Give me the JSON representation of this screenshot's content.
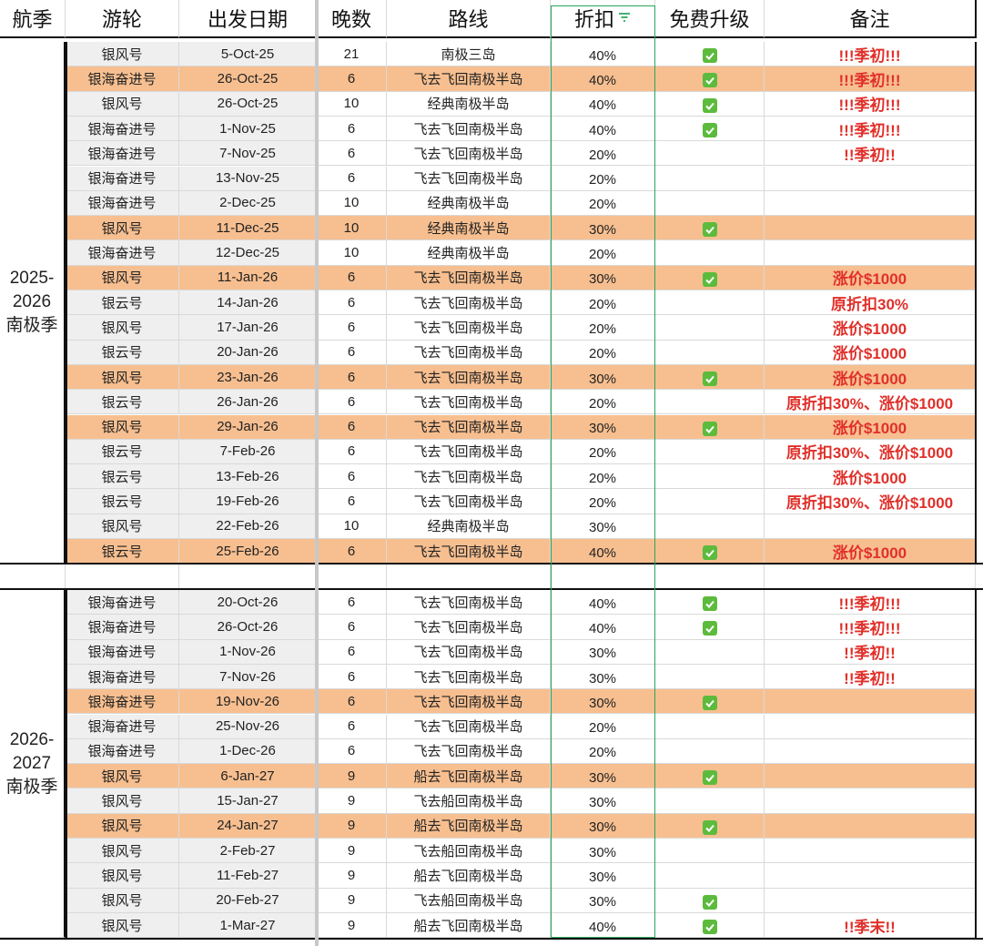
{
  "header": [
    "航季",
    "游轮",
    "出发日期",
    "晚数",
    "路线",
    "折扣",
    "免费升级",
    "备注"
  ],
  "sections": [
    {
      "season": [
        "2025-",
        "2026",
        "南极季"
      ],
      "rows": [
        {
          "ship": "银风号",
          "date": "5-Oct-25",
          "nights": 21,
          "route": "南极三岛",
          "discount": "40%",
          "upgrade": true,
          "note": "!!!季初!!!",
          "highlight": false
        },
        {
          "ship": "银海奋进号",
          "date": "26-Oct-25",
          "nights": 6,
          "route": "飞去飞回南极半岛",
          "discount": "40%",
          "upgrade": true,
          "note": "!!!季初!!!",
          "highlight": true
        },
        {
          "ship": "银风号",
          "date": "26-Oct-25",
          "nights": 10,
          "route": "经典南极半岛",
          "discount": "40%",
          "upgrade": true,
          "note": "!!!季初!!!",
          "highlight": false
        },
        {
          "ship": "银海奋进号",
          "date": "1-Nov-25",
          "nights": 6,
          "route": "飞去飞回南极半岛",
          "discount": "40%",
          "upgrade": true,
          "note": "!!!季初!!!",
          "highlight": false
        },
        {
          "ship": "银海奋进号",
          "date": "7-Nov-25",
          "nights": 6,
          "route": "飞去飞回南极半岛",
          "discount": "20%",
          "upgrade": false,
          "note": "!!季初!!",
          "highlight": false
        },
        {
          "ship": "银海奋进号",
          "date": "13-Nov-25",
          "nights": 6,
          "route": "飞去飞回南极半岛",
          "discount": "20%",
          "upgrade": false,
          "highlight": false
        },
        {
          "ship": "银海奋进号",
          "date": "2-Dec-25",
          "nights": 10,
          "route": "经典南极半岛",
          "discount": "20%",
          "upgrade": false,
          "highlight": false
        },
        {
          "ship": "银风号",
          "date": "11-Dec-25",
          "nights": 10,
          "route": "经典南极半岛",
          "discount": "30%",
          "upgrade": true,
          "highlight": true
        },
        {
          "ship": "银海奋进号",
          "date": "12-Dec-25",
          "nights": 10,
          "route": "经典南极半岛",
          "discount": "20%",
          "upgrade": false,
          "highlight": false
        },
        {
          "ship": "银风号",
          "date": "11-Jan-26",
          "nights": 6,
          "route": "飞去飞回南极半岛",
          "discount": "30%",
          "upgrade": true,
          "note": "涨价$1000",
          "highlight": true
        },
        {
          "ship": "银云号",
          "date": "14-Jan-26",
          "nights": 6,
          "route": "飞去飞回南极半岛",
          "discount": "20%",
          "upgrade": false,
          "note": "原折扣30%",
          "highlight": false
        },
        {
          "ship": "银风号",
          "date": "17-Jan-26",
          "nights": 6,
          "route": "飞去飞回南极半岛",
          "discount": "20%",
          "upgrade": false,
          "note": "涨价$1000",
          "highlight": false
        },
        {
          "ship": "银云号",
          "date": "20-Jan-26",
          "nights": 6,
          "route": "飞去飞回南极半岛",
          "discount": "20%",
          "upgrade": false,
          "note": "涨价$1000",
          "highlight": false
        },
        {
          "ship": "银风号",
          "date": "23-Jan-26",
          "nights": 6,
          "route": "飞去飞回南极半岛",
          "discount": "30%",
          "upgrade": true,
          "note": "涨价$1000",
          "highlight": true
        },
        {
          "ship": "银云号",
          "date": "26-Jan-26",
          "nights": 6,
          "route": "飞去飞回南极半岛",
          "discount": "20%",
          "upgrade": false,
          "note": "原折扣30%、涨价$1000",
          "highlight": false
        },
        {
          "ship": "银风号",
          "date": "29-Jan-26",
          "nights": 6,
          "route": "飞去飞回南极半岛",
          "discount": "30%",
          "upgrade": true,
          "note": "涨价$1000",
          "highlight": true
        },
        {
          "ship": "银云号",
          "date": "7-Feb-26",
          "nights": 6,
          "route": "飞去飞回南极半岛",
          "discount": "20%",
          "upgrade": false,
          "note": "原折扣30%、涨价$1000",
          "highlight": false
        },
        {
          "ship": "银云号",
          "date": "13-Feb-26",
          "nights": 6,
          "route": "飞去飞回南极半岛",
          "discount": "20%",
          "upgrade": false,
          "note": "涨价$1000",
          "highlight": false
        },
        {
          "ship": "银云号",
          "date": "19-Feb-26",
          "nights": 6,
          "route": "飞去飞回南极半岛",
          "discount": "20%",
          "upgrade": false,
          "note": "原折扣30%、涨价$1000",
          "highlight": false
        },
        {
          "ship": "银风号",
          "date": "22-Feb-26",
          "nights": 10,
          "route": "经典南极半岛",
          "discount": "30%",
          "upgrade": false,
          "highlight": false
        },
        {
          "ship": "银云号",
          "date": "25-Feb-26",
          "nights": 6,
          "route": "飞去飞回南极半岛",
          "discount": "40%",
          "upgrade": true,
          "note": "涨价$1000",
          "highlight": true
        }
      ]
    },
    {
      "season": [
        "2026-",
        "2027",
        "南极季"
      ],
      "rows": [
        {
          "ship": "银海奋进号",
          "date": "20-Oct-26",
          "nights": 6,
          "route": "飞去飞回南极半岛",
          "discount": "40%",
          "upgrade": true,
          "note": "!!!季初!!!",
          "highlight": false
        },
        {
          "ship": "银海奋进号",
          "date": "26-Oct-26",
          "nights": 6,
          "route": "飞去飞回南极半岛",
          "discount": "40%",
          "upgrade": true,
          "note": "!!!季初!!!",
          "highlight": false
        },
        {
          "ship": "银海奋进号",
          "date": "1-Nov-26",
          "nights": 6,
          "route": "飞去飞回南极半岛",
          "discount": "30%",
          "upgrade": false,
          "note": "!!季初!!",
          "highlight": false
        },
        {
          "ship": "银海奋进号",
          "date": "7-Nov-26",
          "nights": 6,
          "route": "飞去飞回南极半岛",
          "discount": "30%",
          "upgrade": false,
          "note": "!!季初!!",
          "highlight": false
        },
        {
          "ship": "银海奋进号",
          "date": "19-Nov-26",
          "nights": 6,
          "route": "飞去飞回南极半岛",
          "discount": "30%",
          "upgrade": true,
          "highlight": true
        },
        {
          "ship": "银海奋进号",
          "date": "25-Nov-26",
          "nights": 6,
          "route": "飞去飞回南极半岛",
          "discount": "20%",
          "upgrade": false,
          "highlight": false
        },
        {
          "ship": "银海奋进号",
          "date": "1-Dec-26",
          "nights": 6,
          "route": "飞去飞回南极半岛",
          "discount": "20%",
          "upgrade": false,
          "highlight": false
        },
        {
          "ship": "银风号",
          "date": "6-Jan-27",
          "nights": 9,
          "route": "船去飞回南极半岛",
          "discount": "30%",
          "upgrade": true,
          "highlight": true
        },
        {
          "ship": "银风号",
          "date": "15-Jan-27",
          "nights": 9,
          "route": "飞去船回南极半岛",
          "discount": "30%",
          "upgrade": false,
          "highlight": false
        },
        {
          "ship": "银风号",
          "date": "24-Jan-27",
          "nights": 9,
          "route": "船去飞回南极半岛",
          "discount": "30%",
          "upgrade": true,
          "highlight": true
        },
        {
          "ship": "银风号",
          "date": "2-Feb-27",
          "nights": 9,
          "route": "飞去船回南极半岛",
          "discount": "30%",
          "upgrade": false,
          "highlight": false
        },
        {
          "ship": "银风号",
          "date": "11-Feb-27",
          "nights": 9,
          "route": "船去飞回南极半岛",
          "discount": "30%",
          "upgrade": false,
          "highlight": false
        },
        {
          "ship": "银风号",
          "date": "20-Feb-27",
          "nights": 9,
          "route": "飞去船回南极半岛",
          "discount": "30%",
          "upgrade": true,
          "highlight": false
        },
        {
          "ship": "银风号",
          "date": "1-Mar-27",
          "nights": 9,
          "route": "船去飞回南极半岛",
          "discount": "40%",
          "upgrade": true,
          "note": "!!季末!!",
          "highlight": false
        }
      ]
    }
  ]
}
